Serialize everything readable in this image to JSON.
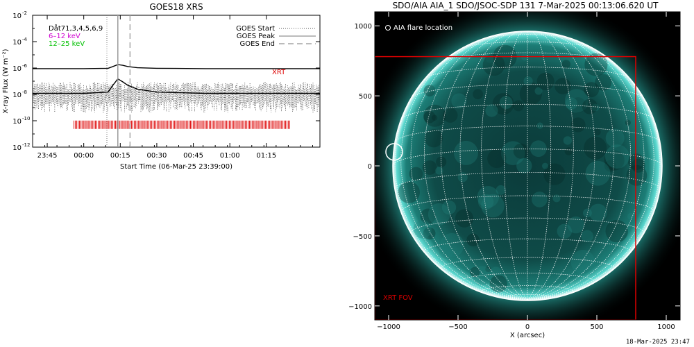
{
  "chart_data": [
    {
      "type": "line",
      "title": "GOES18 XRS",
      "xlabel": "Start Time (06-Mar-25 23:39:00)",
      "ylabel": "X-ray Flux (W m⁻²)",
      "yscale": "log",
      "ylim": [
        1e-12,
        0.01
      ],
      "xlim_minutes": [
        -21.0,
        97.0
      ],
      "x_ticks": [
        {
          "label": "23:45",
          "value": -15
        },
        {
          "label": "00:00",
          "value": 0
        },
        {
          "label": "00:15",
          "value": 15
        },
        {
          "label": "00:30",
          "value": 30
        },
        {
          "label": "00:45",
          "value": 45
        },
        {
          "label": "01:00",
          "value": 60
        },
        {
          "label": "01:15",
          "value": 75
        }
      ],
      "y_ticks": [
        {
          "base": "10",
          "exp": "-2",
          "value": 0.01
        },
        {
          "base": "10",
          "exp": "-4",
          "value": 0.0001
        },
        {
          "base": "10",
          "exp": "-6",
          "value": 1e-06
        },
        {
          "base": "10",
          "exp": "-8",
          "value": 1e-08
        },
        {
          "base": "10",
          "exp": "-10",
          "value": 1e-10
        },
        {
          "base": "10",
          "exp": "-12",
          "value": 1e-12
        }
      ],
      "legend_left": [
        {
          "label": "Dåt71,3,4,5,6,9",
          "color": "#000000"
        },
        {
          "label": "6–12 keV",
          "color": "#d000d0"
        },
        {
          "label": "12–25 keV",
          "color": "#00c000"
        }
      ],
      "legend_right": [
        {
          "label": "GOES Start",
          "style": "dotted"
        },
        {
          "label": "GOES Peak",
          "style": "solid"
        },
        {
          "label": "GOES End",
          "style": "dashed"
        }
      ],
      "event_lines_minutes": {
        "start": 9.5,
        "peak": 14.0,
        "end": 19.0
      },
      "series": [
        {
          "name": "long",
          "color": "#000000",
          "x": [
            -21,
            0,
            10,
            12,
            14,
            16,
            18,
            22,
            30,
            50,
            97
          ],
          "y": [
            9e-07,
            9e-07,
            9.5e-07,
            1.3e-06,
            1.8e-06,
            1.6e-06,
            1.3e-06,
            1.05e-06,
            9.5e-07,
            9e-07,
            9e-07
          ]
        },
        {
          "name": "short",
          "color": "#000000",
          "x": [
            -21,
            0,
            10,
            12,
            14,
            16,
            18,
            22,
            30,
            50,
            97
          ],
          "y": [
            1.2e-08,
            1.2e-08,
            1.5e-08,
            5e-08,
            1.5e-07,
            9e-08,
            5e-08,
            2.5e-08,
            1.5e-08,
            1.2e-08,
            1.2e-08
          ]
        }
      ],
      "xrt_label": "XRT",
      "xrt_obs_range_minutes": [
        -4,
        85
      ],
      "xrt_obs_level": 5e-11
    },
    {
      "type": "scatter",
      "title": "SDO/AIA AIA_1 SDO/JSOC-SDP 131  7-Mar-2025 00:13:06.620 UT",
      "xlabel": "X (arcsec)",
      "ylabel": "",
      "xlim": [
        -1100,
        1100
      ],
      "ylim": [
        -1100,
        1100
      ],
      "x_ticks": [
        -1000,
        -500,
        0,
        500,
        1000
      ],
      "y_ticks": [
        -1000,
        -500,
        0,
        500,
        1000
      ],
      "x_tick_labels": [
        "−1000",
        "−500",
        "0",
        "500",
        "1000"
      ],
      "y_tick_labels": [
        "−1000",
        "−500",
        "0",
        "500",
        "1000"
      ],
      "solar_radius_arcsec": 970,
      "flare_label": "AIA flare location",
      "flare_location": {
        "x": -960,
        "y": 100,
        "radius": 60
      },
      "xrt_fov_label": "XRT FOV",
      "xrt_fov": {
        "x0": -1100,
        "y0": -1100,
        "x1": 780,
        "y1": 780
      },
      "grid": true
    }
  ],
  "footer_date": "18-Mar-2025 23:47"
}
